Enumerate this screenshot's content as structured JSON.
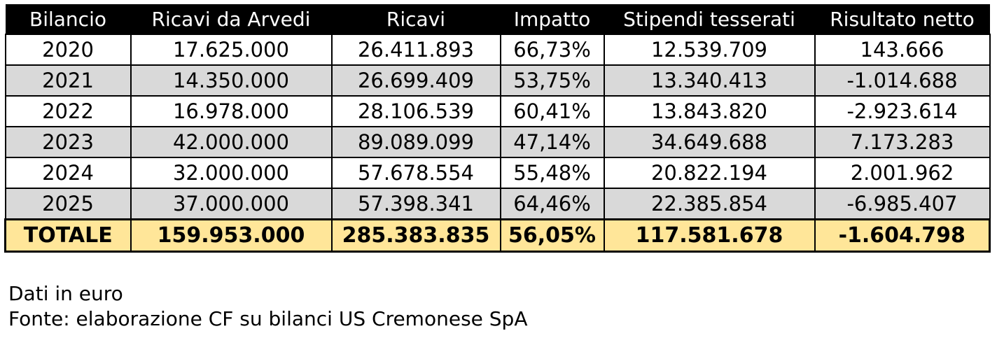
{
  "chart_data": {
    "type": "table",
    "columns": [
      "Bilancio",
      "Ricavi da Arvedi",
      "Ricavi",
      "Impatto",
      "Stipendi tesserati",
      "Risultato netto"
    ],
    "rows": [
      [
        "2020",
        "17.625.000",
        "26.411.893",
        "66,73%",
        "12.539.709",
        "143.666"
      ],
      [
        "2021",
        "14.350.000",
        "26.699.409",
        "53,75%",
        "13.340.413",
        "-1.014.688"
      ],
      [
        "2022",
        "16.978.000",
        "28.106.539",
        "60,41%",
        "13.843.820",
        "-2.923.614"
      ],
      [
        "2023",
        "42.000.000",
        "89.089.099",
        "47,14%",
        "34.649.688",
        "7.173.283"
      ],
      [
        "2024",
        "32.000.000",
        "57.678.554",
        "55,48%",
        "20.822.194",
        "2.001.962"
      ],
      [
        "2025",
        "37.000.000",
        "57.398.341",
        "64,46%",
        "22.385.854",
        "-6.985.407"
      ]
    ],
    "total": [
      "TOTALE",
      "159.953.000",
      "285.383.835",
      "56,05%",
      "117.581.678",
      "-1.604.798"
    ]
  },
  "notes": {
    "unit": "Dati in euro",
    "source": "Fonte: elaborazione CF su bilanci US Cremonese SpA"
  },
  "colors": {
    "header_bg": "#000000",
    "header_text": "#ffffff",
    "stripe_bg": "#d9d9d9",
    "total_bg": "#ffe699"
  }
}
